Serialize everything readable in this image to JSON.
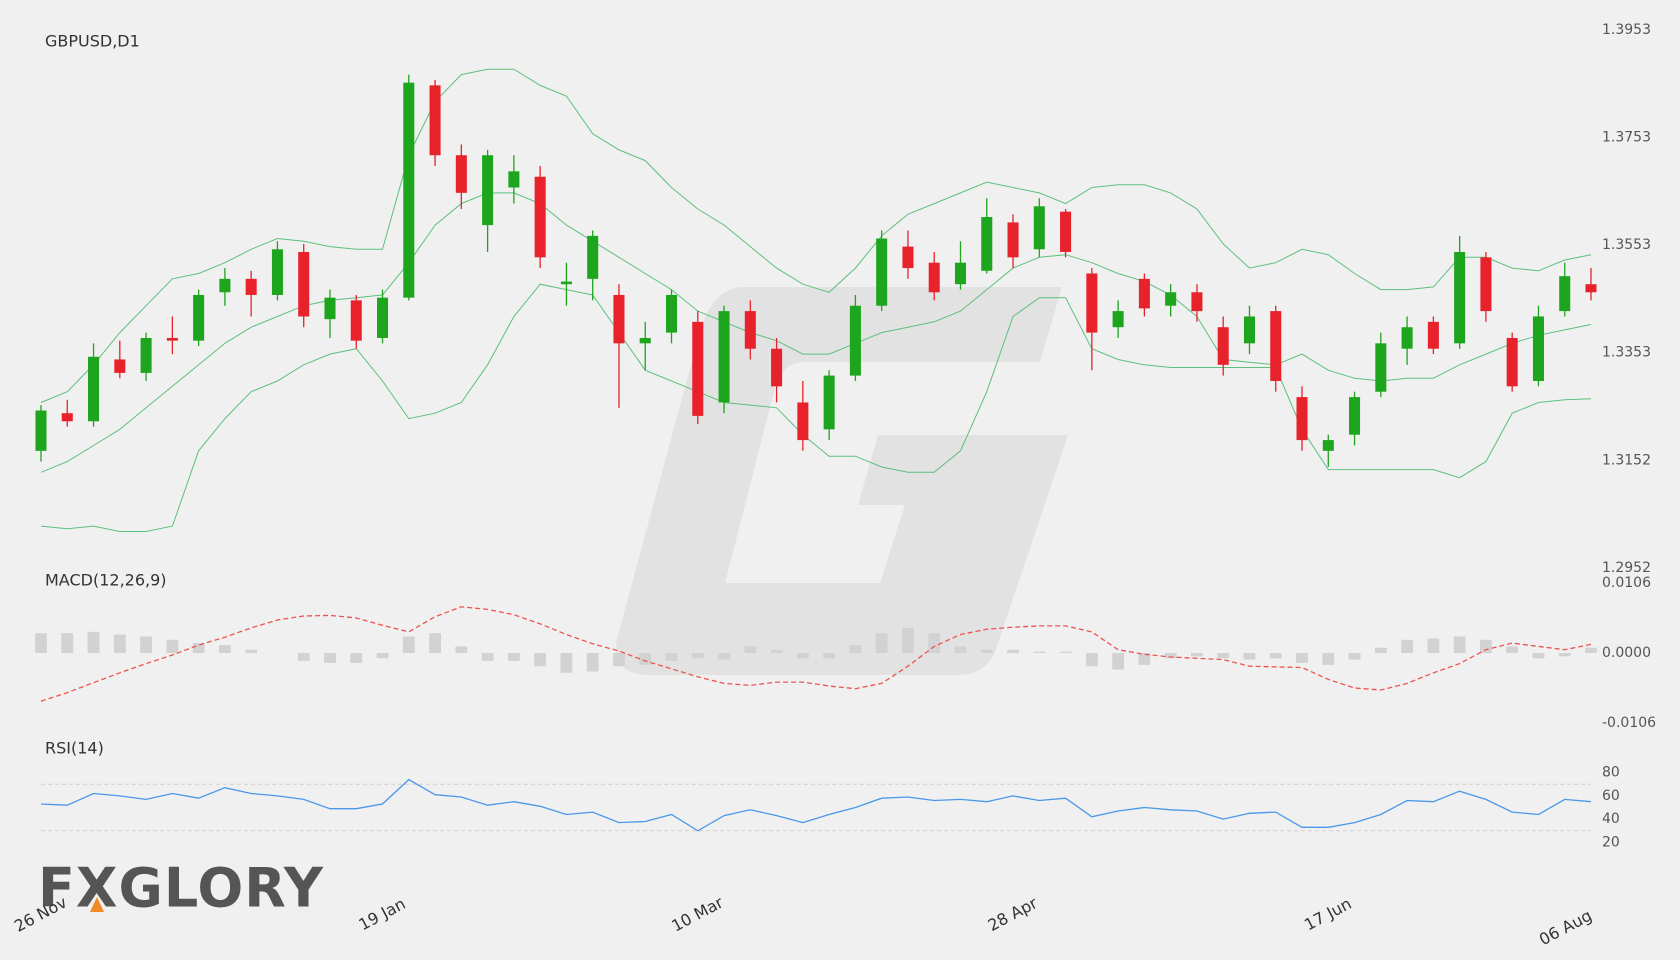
{
  "logo": "FXGLORY",
  "chart_data": [
    {
      "type": "candlestick",
      "title": "GBPUSD,D1",
      "x": [
        "26 Nov",
        null,
        null,
        null,
        null,
        null,
        null,
        null,
        null,
        null,
        null,
        null,
        null,
        "19 Jan",
        null,
        null,
        null,
        null,
        null,
        null,
        null,
        null,
        null,
        null,
        null,
        "10 Mar",
        null,
        null,
        null,
        null,
        null,
        null,
        null,
        null,
        null,
        null,
        null,
        "28 Apr",
        null,
        null,
        null,
        null,
        null,
        null,
        null,
        null,
        null,
        null,
        null,
        "17 Jun",
        null,
        null,
        null,
        null,
        null,
        null,
        null,
        null,
        null,
        "06 Aug"
      ],
      "open": [
        1.317,
        1.324,
        1.3225,
        1.334,
        1.3315,
        1.338,
        1.3375,
        1.3465,
        1.349,
        1.346,
        1.354,
        1.3415,
        1.345,
        1.338,
        1.3455,
        1.385,
        1.372,
        1.359,
        1.366,
        1.368,
        1.348,
        1.349,
        1.346,
        1.337,
        1.339,
        1.341,
        1.326,
        1.343,
        1.336,
        1.326,
        1.321,
        1.331,
        1.344,
        1.355,
        1.352,
        1.348,
        1.3505,
        1.3595,
        1.3545,
        1.3615,
        1.35,
        1.34,
        1.349,
        1.344,
        1.3465,
        1.34,
        1.337,
        1.343,
        1.327,
        1.317,
        1.32,
        1.328,
        1.336,
        1.341,
        1.337,
        1.353,
        1.338,
        1.33,
        1.343,
        1.348
      ],
      "high": [
        1.3255,
        1.3265,
        1.337,
        1.3375,
        1.339,
        1.342,
        1.347,
        1.351,
        1.3505,
        1.356,
        1.3555,
        1.347,
        1.346,
        1.347,
        1.387,
        1.386,
        1.374,
        1.373,
        1.372,
        1.37,
        1.352,
        1.358,
        1.348,
        1.341,
        1.347,
        1.343,
        1.344,
        1.345,
        1.338,
        1.33,
        1.332,
        1.346,
        1.358,
        1.358,
        1.354,
        1.356,
        1.364,
        1.361,
        1.364,
        1.362,
        1.351,
        1.345,
        1.35,
        1.348,
        1.348,
        1.342,
        1.344,
        1.344,
        1.329,
        1.32,
        1.328,
        1.339,
        1.342,
        1.342,
        1.357,
        1.354,
        1.339,
        1.344,
        1.352,
        1.351
      ],
      "low": [
        1.315,
        1.3215,
        1.3215,
        1.3305,
        1.33,
        1.335,
        1.3365,
        1.344,
        1.342,
        1.345,
        1.34,
        1.338,
        1.336,
        1.337,
        1.345,
        1.37,
        1.362,
        1.354,
        1.363,
        1.351,
        1.344,
        1.345,
        1.325,
        1.332,
        1.337,
        1.322,
        1.324,
        1.334,
        1.326,
        1.317,
        1.319,
        1.33,
        1.343,
        1.349,
        1.345,
        1.347,
        1.35,
        1.351,
        1.353,
        1.353,
        1.332,
        1.338,
        1.342,
        1.342,
        1.341,
        1.331,
        1.335,
        1.328,
        1.317,
        1.314,
        1.318,
        1.327,
        1.333,
        1.335,
        1.336,
        1.341,
        1.328,
        1.329,
        1.342,
        1.345
      ],
      "close": [
        1.3245,
        1.3225,
        1.3345,
        1.3315,
        1.338,
        1.3375,
        1.346,
        1.349,
        1.346,
        1.3545,
        1.342,
        1.3455,
        1.3375,
        1.3455,
        1.3855,
        1.372,
        1.365,
        1.372,
        1.369,
        1.353,
        1.3485,
        1.357,
        1.337,
        1.338,
        1.346,
        1.3235,
        1.343,
        1.336,
        1.329,
        1.319,
        1.331,
        1.344,
        1.3565,
        1.351,
        1.3465,
        1.352,
        1.3605,
        1.353,
        1.3625,
        1.354,
        1.339,
        1.343,
        1.3435,
        1.3465,
        1.343,
        1.333,
        1.342,
        1.33,
        1.319,
        1.319,
        1.327,
        1.337,
        1.34,
        1.336,
        1.354,
        1.343,
        1.329,
        1.342,
        1.3495,
        1.3465
      ],
      "up_color": "#1ea51e",
      "down_color": "#e8222a",
      "bands": {
        "color": "#5cc07c",
        "upper": [
          1.326,
          1.328,
          1.333,
          1.339,
          1.344,
          1.349,
          1.35,
          1.352,
          1.3545,
          1.3565,
          1.356,
          1.355,
          1.3545,
          1.3545,
          1.372,
          1.382,
          1.387,
          1.388,
          1.388,
          1.385,
          1.383,
          1.376,
          1.373,
          1.371,
          1.366,
          1.362,
          1.359,
          1.355,
          1.351,
          1.348,
          1.3465,
          1.351,
          1.357,
          1.361,
          1.363,
          1.365,
          1.367,
          1.366,
          1.365,
          1.363,
          1.366,
          1.3665,
          1.3665,
          1.365,
          1.362,
          1.3555,
          1.351,
          1.352,
          1.3545,
          1.3535,
          1.35,
          1.347,
          1.347,
          1.3475,
          1.353,
          1.353,
          1.351,
          1.3505,
          1.3525,
          1.3535
        ],
        "middle": [
          1.313,
          1.315,
          1.318,
          1.321,
          1.325,
          1.329,
          1.333,
          1.337,
          1.34,
          1.342,
          1.344,
          1.345,
          1.3455,
          1.346,
          1.352,
          1.359,
          1.363,
          1.365,
          1.365,
          1.363,
          1.359,
          1.356,
          1.353,
          1.35,
          1.347,
          1.343,
          1.341,
          1.339,
          1.3375,
          1.335,
          1.335,
          1.337,
          1.339,
          1.34,
          1.341,
          1.343,
          1.347,
          1.351,
          1.353,
          1.3535,
          1.352,
          1.35,
          1.3485,
          1.346,
          1.342,
          1.334,
          1.3335,
          1.333,
          1.335,
          1.332,
          1.3305,
          1.33,
          1.3305,
          1.3305,
          1.333,
          1.335,
          1.337,
          1.3385,
          1.3395,
          1.3405
        ],
        "lower": [
          1.303,
          1.3025,
          1.303,
          1.302,
          1.302,
          1.303,
          1.317,
          1.323,
          1.328,
          1.33,
          1.333,
          1.335,
          1.336,
          1.33,
          1.323,
          1.324,
          1.326,
          1.333,
          1.342,
          1.348,
          1.347,
          1.346,
          1.339,
          1.332,
          1.33,
          1.328,
          1.326,
          1.3255,
          1.325,
          1.32,
          1.316,
          1.316,
          1.314,
          1.313,
          1.313,
          1.317,
          1.328,
          1.342,
          1.3455,
          1.3455,
          1.336,
          1.334,
          1.333,
          1.3325,
          1.3325,
          1.3325,
          1.3325,
          1.3325,
          1.321,
          1.3135,
          1.3135,
          1.3135,
          1.3135,
          1.3135,
          1.312,
          1.315,
          1.324,
          1.326,
          1.3265,
          1.3267
        ]
      },
      "ylim": [
        1.2952,
        1.3953
      ],
      "yticks": [
        1.2952,
        1.3152,
        1.3353,
        1.3553,
        1.3753,
        1.3953
      ]
    },
    {
      "type": "macd",
      "title": "MACD(12,26,9)",
      "histogram": [
        0.003,
        0.003,
        0.0032,
        0.0028,
        0.0025,
        0.002,
        0.0015,
        0.0012,
        0.0005,
        0.0,
        -0.0012,
        -0.0015,
        -0.0015,
        -0.0008,
        0.0025,
        0.003,
        0.001,
        -0.0012,
        -0.0012,
        -0.002,
        -0.003,
        -0.0028,
        -0.002,
        -0.0018,
        -0.0012,
        -0.0008,
        -0.001,
        0.001,
        0.0005,
        -0.0008,
        -0.0008,
        0.0012,
        0.003,
        0.0038,
        0.003,
        0.001,
        0.0005,
        0.0005,
        0.0002,
        0.0002,
        -0.002,
        -0.0025,
        -0.0018,
        -0.0008,
        -0.0005,
        -0.0008,
        -0.001,
        -0.0008,
        -0.0015,
        -0.0018,
        -0.001,
        0.0008,
        0.002,
        0.0022,
        0.0025,
        0.002,
        0.001,
        -0.0008,
        -0.0005,
        0.0008
      ],
      "signal": [
        -0.0073,
        -0.006,
        -0.0045,
        -0.003,
        -0.0016,
        -0.0003,
        0.0012,
        0.0024,
        0.0038,
        0.005,
        0.0056,
        0.0057,
        0.0053,
        0.0042,
        0.0032,
        0.0055,
        0.007,
        0.0066,
        0.0058,
        0.0044,
        0.0028,
        0.0014,
        0.0003,
        -0.0012,
        -0.0024,
        -0.0036,
        -0.0046,
        -0.0049,
        -0.0044,
        -0.0044,
        -0.005,
        -0.0054,
        -0.0046,
        -0.002,
        0.001,
        0.0028,
        0.0036,
        0.0039,
        0.0041,
        0.0041,
        0.0032,
        0.0005,
        -0.0002,
        -0.0006,
        -0.0008,
        -0.001,
        -0.002,
        -0.0021,
        -0.0022,
        -0.004,
        -0.0053,
        -0.0056,
        -0.0046,
        -0.003,
        -0.0016,
        0.0005,
        0.0015,
        0.001,
        0.0005,
        0.0013
      ],
      "histogram_color": "#d2d2d2",
      "signal_color": "#ef5350",
      "ylim": [
        -0.0106,
        0.0106
      ],
      "yticks": [
        0.0106,
        {
          "value": 0,
          "label": "0.0000"
        },
        -0.0106
      ]
    },
    {
      "type": "rsi",
      "title": "RSI(14)",
      "values": [
        53,
        52,
        62,
        60,
        57,
        62,
        58,
        67,
        62,
        60,
        57,
        49,
        49,
        53,
        74,
        61,
        59,
        52,
        55,
        51,
        44,
        46,
        37,
        38,
        44,
        30,
        43,
        48,
        43,
        37,
        44,
        50,
        58,
        59,
        56,
        57,
        55,
        60,
        56,
        58,
        42,
        47,
        50,
        48,
        47,
        40,
        45,
        46,
        33,
        33,
        37,
        44,
        56,
        55,
        64,
        57,
        46,
        44,
        57,
        55
      ],
      "color": "#4a97ea",
      "levels": [
        30,
        70
      ],
      "ylim": [
        10,
        90
      ],
      "yticks": [
        20,
        40,
        60,
        80
      ]
    }
  ]
}
